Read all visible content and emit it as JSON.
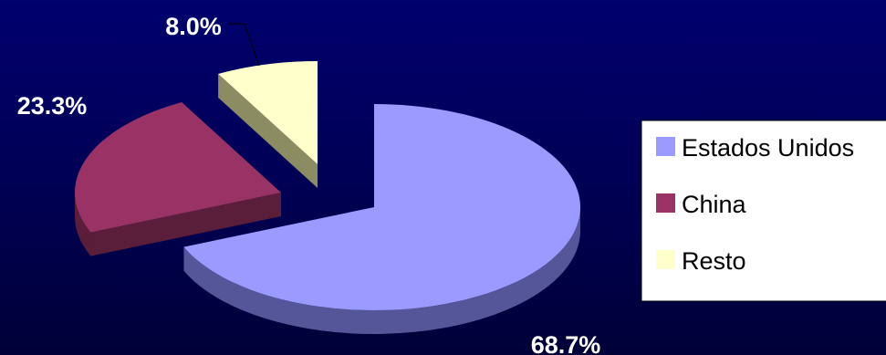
{
  "chart_data": {
    "type": "pie",
    "style": "3d-exploded",
    "title": "",
    "series": [
      {
        "name": "Estados Unidos",
        "value": 68.7,
        "label": "68.7%",
        "color": "#9a9aff",
        "side_color": "#55559a"
      },
      {
        "name": "China",
        "value": 23.3,
        "label": "23.3%",
        "color": "#993366",
        "side_color": "#5a1e3a"
      },
      {
        "name": "Resto",
        "value": 8.0,
        "label": "8.0%",
        "color": "#ffffcc",
        "side_color": "#8c8c62"
      }
    ],
    "legend": {
      "placement": "right",
      "entries": [
        "Estados Unidos",
        "China",
        "Resto"
      ],
      "background": "#ffffff"
    },
    "background": "#00006e"
  }
}
